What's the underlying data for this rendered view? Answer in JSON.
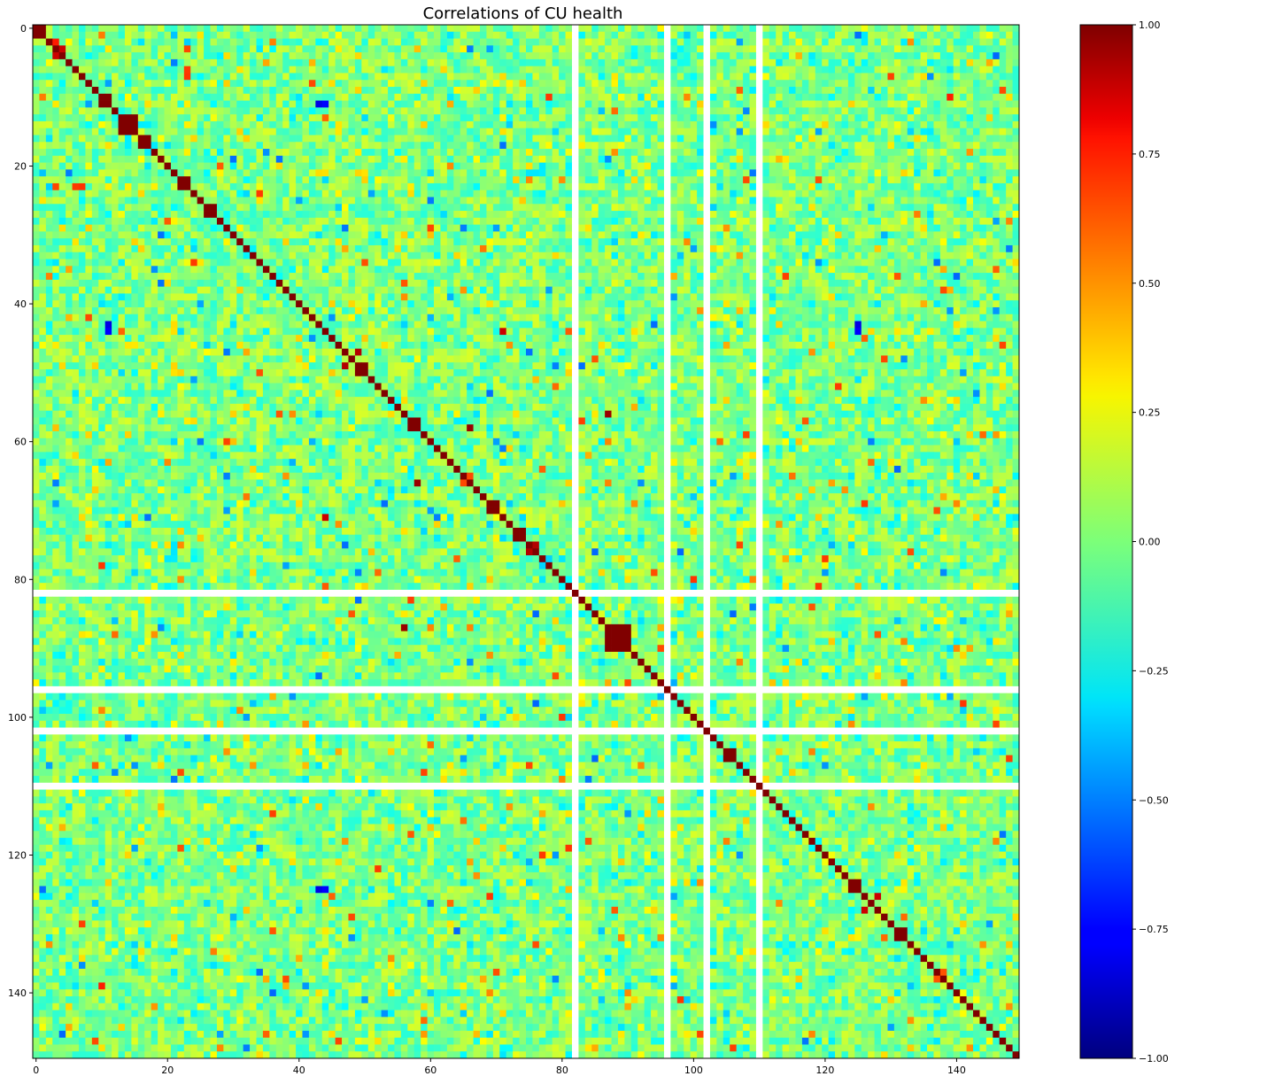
{
  "chart_data": {
    "type": "heatmap",
    "title": "Correlations of CU health",
    "xlabel": "",
    "ylabel": "",
    "n": 150,
    "xlim": [
      -0.5,
      149.5
    ],
    "ylim": [
      149.5,
      -0.5
    ],
    "x_ticks": [
      0,
      20,
      40,
      60,
      80,
      100,
      120,
      140
    ],
    "y_ticks": [
      0,
      20,
      40,
      60,
      80,
      100,
      120,
      140
    ],
    "x_tick_labels": [
      "0",
      "20",
      "40",
      "60",
      "80",
      "100",
      "120",
      "140"
    ],
    "y_tick_labels": [
      "0",
      "20",
      "40",
      "60",
      "80",
      "100",
      "120",
      "140"
    ],
    "colormap": "jet",
    "vmin": -1.0,
    "vmax": 1.0,
    "colorbar_ticks": [
      1.0,
      0.75,
      0.5,
      0.25,
      0.0,
      -0.25,
      -0.5,
      -0.75,
      -1.0
    ],
    "colorbar_tick_labels": [
      "1.00",
      "0.75",
      "0.50",
      "0.25",
      "0.00",
      "−0.25",
      "−0.50",
      "−0.75",
      "−1.00"
    ],
    "diagonal_value": 1.0,
    "nan_indices": [
      82,
      96,
      102,
      110
    ],
    "high_correlation_blocks": [
      {
        "rows": [
          0,
          1
        ],
        "value": 1.0
      },
      {
        "rows": [
          10,
          11
        ],
        "value": 1.0
      },
      {
        "rows": [
          13,
          15
        ],
        "value": 1.0
      },
      {
        "rows": [
          16,
          17
        ],
        "value": 1.0
      },
      {
        "rows": [
          22,
          23
        ],
        "value": 1.0
      },
      {
        "rows": [
          26,
          27
        ],
        "value": 1.0
      },
      {
        "rows": [
          49,
          50
        ],
        "value": 1.0
      },
      {
        "rows": [
          57,
          58
        ],
        "value": 1.0
      },
      {
        "rows": [
          69,
          70
        ],
        "value": 1.0
      },
      {
        "rows": [
          73,
          74
        ],
        "value": 1.0
      },
      {
        "rows": [
          87,
          90
        ],
        "value": 1.0
      },
      {
        "rows": [
          105,
          106
        ],
        "value": 1.0
      },
      {
        "rows": [
          124,
          125
        ],
        "value": 1.0
      },
      {
        "rows": [
          131,
          132
        ],
        "value": 1.0
      }
    ],
    "notable_cells": [
      {
        "i": 3,
        "j": 4,
        "value": 0.85
      },
      {
        "i": 4,
        "j": 3,
        "value": 0.85
      },
      {
        "i": 2,
        "j": 3,
        "value": 0.7
      },
      {
        "i": 47,
        "j": 49,
        "value": 0.9
      },
      {
        "i": 49,
        "j": 47,
        "value": 0.9
      },
      {
        "i": 56,
        "j": 87,
        "value": 0.95
      },
      {
        "i": 87,
        "j": 56,
        "value": 0.95
      },
      {
        "i": 58,
        "j": 66,
        "value": 0.95
      },
      {
        "i": 66,
        "j": 58,
        "value": 0.95
      },
      {
        "i": 75,
        "j": 76,
        "value": 0.9
      },
      {
        "i": 76,
        "j": 75,
        "value": 0.9
      },
      {
        "i": 126,
        "j": 128,
        "value": 0.85
      },
      {
        "i": 128,
        "j": 126,
        "value": 0.85
      },
      {
        "i": 44,
        "j": 11,
        "value": -0.75
      },
      {
        "i": 11,
        "j": 44,
        "value": -0.75
      },
      {
        "i": 44,
        "j": 125,
        "value": -0.75
      },
      {
        "i": 125,
        "j": 44,
        "value": -0.75
      },
      {
        "i": 125,
        "j": 43,
        "value": -0.8
      },
      {
        "i": 43,
        "j": 125,
        "value": -0.8
      },
      {
        "i": 11,
        "j": 43,
        "value": -0.8
      },
      {
        "i": 43,
        "j": 11,
        "value": -0.8
      },
      {
        "i": 7,
        "j": 23,
        "value": 0.65
      },
      {
        "i": 23,
        "j": 7,
        "value": 0.65
      },
      {
        "i": 44,
        "j": 71,
        "value": 0.85
      },
      {
        "i": 71,
        "j": 44,
        "value": 0.85
      },
      {
        "i": 76,
        "j": 133,
        "value": 0.6
      },
      {
        "i": 133,
        "j": 76,
        "value": 0.6
      },
      {
        "i": 139,
        "j": 10,
        "value": 0.7
      },
      {
        "i": 10,
        "j": 139,
        "value": 0.7
      }
    ],
    "typical_offdiagonal_range": [
      -0.25,
      0.3
    ]
  }
}
